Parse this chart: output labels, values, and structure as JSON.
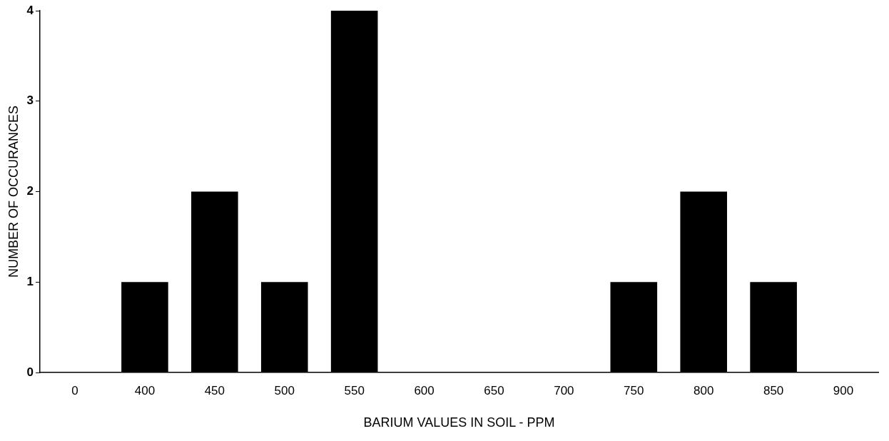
{
  "chart_data": {
    "type": "bar",
    "xlabel": "BARIUM VALUES IN SOIL - PPM",
    "ylabel": "NUMBER OF OCCURANCES",
    "categories": [
      "0",
      "400",
      "450",
      "500",
      "550",
      "600",
      "650",
      "700",
      "750",
      "800",
      "850",
      "900"
    ],
    "values": [
      0,
      1,
      2,
      1,
      4,
      0,
      0,
      0,
      1,
      2,
      1,
      0
    ],
    "color": "#000000",
    "ylim": [
      0,
      4
    ],
    "yticks": [
      0,
      1,
      2,
      3,
      4
    ],
    "grid": false,
    "legend": false
  }
}
